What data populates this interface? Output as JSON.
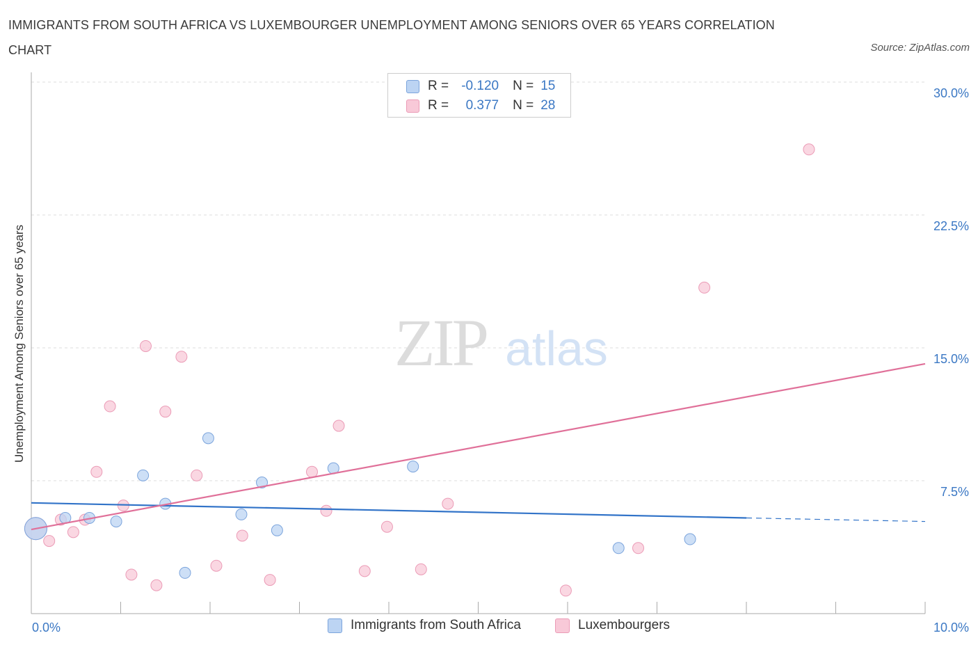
{
  "title": "IMMIGRANTS FROM SOUTH AFRICA VS LUXEMBOURGER UNEMPLOYMENT AMONG SENIORS OVER 65 YEARS CORRELATION CHART",
  "source": "Source: ZipAtlas.com",
  "watermark": {
    "zip": "ZIP",
    "atlas": "atlas"
  },
  "colors": {
    "blue": "#3173c8",
    "blue_fill": "#bcd4f3",
    "blue_stroke": "#7ba4dc",
    "pink": "#e07099",
    "pink_fill": "#f8c9d8",
    "pink_stroke": "#eb9bb6",
    "tick": "#3b78c4",
    "grid": "#dddddd"
  },
  "legend": {
    "rows": [
      {
        "r_label": "R =",
        "r_value": "-0.120",
        "n_label": "N =",
        "n_value": "15",
        "color": "blue"
      },
      {
        "r_label": "R =",
        "r_value": "0.377",
        "n_label": "N =",
        "n_value": "28",
        "color": "pink"
      }
    ]
  },
  "bottom_legend": [
    "Immigrants from South Africa",
    "Luxembourgers"
  ],
  "chart_data": {
    "type": "scatter",
    "title": "IMMIGRANTS FROM SOUTH AFRICA VS LUXEMBOURGER UNEMPLOYMENT AMONG SENIORS OVER 65 YEARS CORRELATION CHART",
    "xlabel": "",
    "ylabel": "Unemployment Among Seniors over 65 years",
    "xlim": [
      0,
      10
    ],
    "ylim": [
      0,
      30
    ],
    "x_tick_labels": [
      "0.0%",
      "10.0%"
    ],
    "y_ticks": [
      7.5,
      15,
      22.5,
      30
    ],
    "y_tick_labels": [
      "7.5%",
      "15.0%",
      "22.5%",
      "30.0%"
    ],
    "grid": true,
    "legend_position": "top-center",
    "series": [
      {
        "name": "Immigrants from South Africa",
        "color": "blue",
        "points": [
          {
            "x": 0.05,
            "y": 4.8,
            "big": true
          },
          {
            "x": 0.38,
            "y": 5.4
          },
          {
            "x": 0.65,
            "y": 5.4
          },
          {
            "x": 0.95,
            "y": 5.2
          },
          {
            "x": 1.25,
            "y": 7.8
          },
          {
            "x": 1.5,
            "y": 6.2
          },
          {
            "x": 1.72,
            "y": 2.3
          },
          {
            "x": 1.98,
            "y": 9.9
          },
          {
            "x": 2.35,
            "y": 5.6
          },
          {
            "x": 2.58,
            "y": 7.4
          },
          {
            "x": 2.75,
            "y": 4.7
          },
          {
            "x": 3.38,
            "y": 8.2
          },
          {
            "x": 4.27,
            "y": 8.3
          },
          {
            "x": 6.57,
            "y": 3.7
          },
          {
            "x": 7.37,
            "y": 4.2
          }
        ],
        "trend": {
          "x0": 0,
          "y0": 6.25,
          "x1": 8.0,
          "y1": 5.4,
          "dash_to_x": 10.0,
          "dash_to_y": 5.2
        }
      },
      {
        "name": "Luxembourgers",
        "color": "pink",
        "points": [
          {
            "x": 0.05,
            "y": 4.8,
            "big": true
          },
          {
            "x": 0.2,
            "y": 4.1
          },
          {
            "x": 0.33,
            "y": 5.3
          },
          {
            "x": 0.47,
            "y": 4.6
          },
          {
            "x": 0.6,
            "y": 5.3
          },
          {
            "x": 0.73,
            "y": 8.0
          },
          {
            "x": 0.88,
            "y": 11.7
          },
          {
            "x": 1.03,
            "y": 6.1
          },
          {
            "x": 1.12,
            "y": 2.2
          },
          {
            "x": 1.28,
            "y": 15.1
          },
          {
            "x": 1.4,
            "y": 1.6
          },
          {
            "x": 1.5,
            "y": 11.4
          },
          {
            "x": 1.68,
            "y": 14.5
          },
          {
            "x": 1.85,
            "y": 7.8
          },
          {
            "x": 2.07,
            "y": 2.7
          },
          {
            "x": 2.36,
            "y": 4.4
          },
          {
            "x": 2.67,
            "y": 1.9
          },
          {
            "x": 3.14,
            "y": 8.0
          },
          {
            "x": 3.3,
            "y": 5.8
          },
          {
            "x": 3.44,
            "y": 10.6
          },
          {
            "x": 3.73,
            "y": 2.4
          },
          {
            "x": 3.98,
            "y": 4.9
          },
          {
            "x": 4.36,
            "y": 2.5
          },
          {
            "x": 4.66,
            "y": 6.2
          },
          {
            "x": 5.98,
            "y": 1.3
          },
          {
            "x": 6.79,
            "y": 3.7
          },
          {
            "x": 7.53,
            "y": 18.4
          },
          {
            "x": 8.7,
            "y": 26.2
          }
        ],
        "trend": {
          "x0": 0,
          "y0": 4.75,
          "x1": 10.0,
          "y1": 14.1
        }
      }
    ]
  }
}
